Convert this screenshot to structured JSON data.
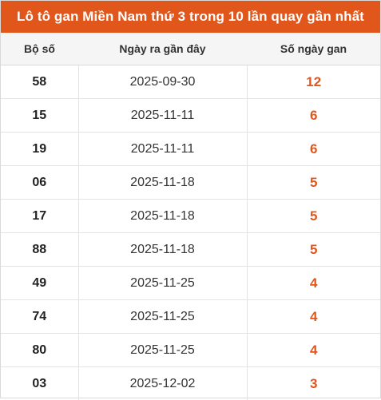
{
  "title": "Lô tô gan Miền Nam thứ 3 trong 10 lần quay gần nhất",
  "colors": {
    "accent": "#e0561b",
    "header_bg": "#f5f5f5"
  },
  "table": {
    "headers": [
      "Bộ số",
      "Ngày ra gần đây",
      "Số ngày gan"
    ],
    "rows": [
      {
        "number": "58",
        "date": "2025-09-30",
        "days": "12"
      },
      {
        "number": "15",
        "date": "2025-11-11",
        "days": "6"
      },
      {
        "number": "19",
        "date": "2025-11-11",
        "days": "6"
      },
      {
        "number": "06",
        "date": "2025-11-18",
        "days": "5"
      },
      {
        "number": "17",
        "date": "2025-11-18",
        "days": "5"
      },
      {
        "number": "88",
        "date": "2025-11-18",
        "days": "5"
      },
      {
        "number": "49",
        "date": "2025-11-25",
        "days": "4"
      },
      {
        "number": "74",
        "date": "2025-11-25",
        "days": "4"
      },
      {
        "number": "80",
        "date": "2025-11-25",
        "days": "4"
      },
      {
        "number": "03",
        "date": "2025-12-02",
        "days": "3"
      }
    ]
  }
}
